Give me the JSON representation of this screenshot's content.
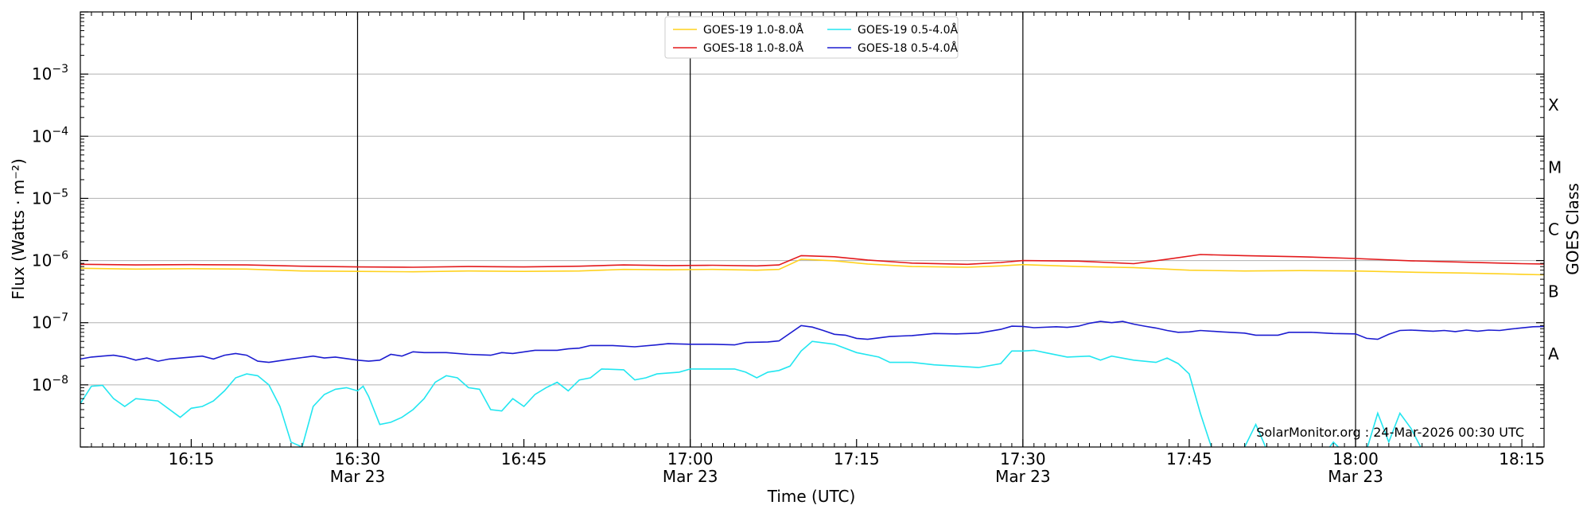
{
  "chart_data": {
    "type": "line",
    "xlabel": "Time (UTC)",
    "ylabel": "Flux (Watts · m⁻²)",
    "ylabel_right": "GOES Class",
    "yscale": "log",
    "ylim": [
      1e-09,
      0.01
    ],
    "xlim_minutes": [
      965,
      1097
    ],
    "x_ticks": [
      {
        "minute": 975,
        "label": "16:15",
        "sublabel": ""
      },
      {
        "minute": 990,
        "label": "16:30",
        "sublabel": "Mar 23"
      },
      {
        "minute": 1005,
        "label": "16:45",
        "sublabel": ""
      },
      {
        "minute": 1020,
        "label": "17:00",
        "sublabel": "Mar 23"
      },
      {
        "minute": 1035,
        "label": "17:15",
        "sublabel": ""
      },
      {
        "minute": 1050,
        "label": "17:30",
        "sublabel": "Mar 23"
      },
      {
        "minute": 1065,
        "label": "17:45",
        "sublabel": ""
      },
      {
        "minute": 1080,
        "label": "18:00",
        "sublabel": "Mar 23"
      },
      {
        "minute": 1095,
        "label": "18:15",
        "sublabel": ""
      }
    ],
    "y_ticks": [
      {
        "value": 1e-08,
        "label": "10",
        "exp": "−8"
      },
      {
        "value": 1e-07,
        "label": "10",
        "exp": "−7"
      },
      {
        "value": 1e-06,
        "label": "10",
        "exp": "−6"
      },
      {
        "value": 1e-05,
        "label": "10",
        "exp": "−5"
      },
      {
        "value": 0.0001,
        "label": "10",
        "exp": "−4"
      },
      {
        "value": 0.001,
        "label": "10",
        "exp": "−3"
      }
    ],
    "vertical_lines_minutes": [
      990,
      1020,
      1050,
      1080
    ],
    "goes_classes": [
      {
        "label": "A",
        "value": 3.16e-08
      },
      {
        "label": "B",
        "value": 3.16e-07
      },
      {
        "label": "C",
        "value": 3.16e-06
      },
      {
        "label": "M",
        "value": 3.16e-05
      },
      {
        "label": "X",
        "value": 0.000316
      }
    ],
    "grid": "horizontal",
    "legend_position": "top-center",
    "annotation": "SolarMonitor.org : 24-Mar-2026 00:30 UTC",
    "series": [
      {
        "name": "GOES-19 1.0-8.0Å",
        "color": "#ffd21f",
        "points": [
          [
            965,
            7.5e-07
          ],
          [
            970,
            7.3e-07
          ],
          [
            975,
            7.4e-07
          ],
          [
            980,
            7.3e-07
          ],
          [
            985,
            6.8e-07
          ],
          [
            990,
            6.7e-07
          ],
          [
            995,
            6.6e-07
          ],
          [
            1000,
            6.8e-07
          ],
          [
            1005,
            6.7e-07
          ],
          [
            1010,
            6.8e-07
          ],
          [
            1014,
            7.2e-07
          ],
          [
            1018,
            7.1e-07
          ],
          [
            1022,
            7.2e-07
          ],
          [
            1026,
            7e-07
          ],
          [
            1028,
            7.2e-07
          ],
          [
            1030,
            1.05e-06
          ],
          [
            1033,
            9.9e-07
          ],
          [
            1036,
            8.8e-07
          ],
          [
            1040,
            8e-07
          ],
          [
            1045,
            7.8e-07
          ],
          [
            1048,
            8.2e-07
          ],
          [
            1050,
            8.6e-07
          ],
          [
            1055,
            8e-07
          ],
          [
            1060,
            7.7e-07
          ],
          [
            1065,
            7e-07
          ],
          [
            1070,
            6.8e-07
          ],
          [
            1075,
            6.9e-07
          ],
          [
            1080,
            6.8e-07
          ],
          [
            1085,
            6.5e-07
          ],
          [
            1090,
            6.3e-07
          ],
          [
            1095,
            6e-07
          ],
          [
            1097,
            5.9e-07
          ]
        ]
      },
      {
        "name": "GOES-18 1.0-8.0Å",
        "color": "#e31a1c",
        "points": [
          [
            965,
            8.7e-07
          ],
          [
            970,
            8.5e-07
          ],
          [
            975,
            8.6e-07
          ],
          [
            980,
            8.5e-07
          ],
          [
            985,
            8.1e-07
          ],
          [
            990,
            7.9e-07
          ],
          [
            995,
            7.8e-07
          ],
          [
            1000,
            8e-07
          ],
          [
            1005,
            7.9e-07
          ],
          [
            1010,
            8.1e-07
          ],
          [
            1014,
            8.5e-07
          ],
          [
            1018,
            8.3e-07
          ],
          [
            1022,
            8.4e-07
          ],
          [
            1026,
            8.2e-07
          ],
          [
            1028,
            8.5e-07
          ],
          [
            1030,
            1.2e-06
          ],
          [
            1033,
            1.15e-06
          ],
          [
            1036,
            1.02e-06
          ],
          [
            1040,
            9.1e-07
          ],
          [
            1045,
            8.7e-07
          ],
          [
            1048,
            9.3e-07
          ],
          [
            1050,
            1e-06
          ],
          [
            1055,
            9.8e-07
          ],
          [
            1060,
            8.9e-07
          ],
          [
            1063,
            1.05e-06
          ],
          [
            1066,
            1.25e-06
          ],
          [
            1070,
            1.2e-06
          ],
          [
            1075,
            1.15e-06
          ],
          [
            1080,
            1.08e-06
          ],
          [
            1085,
            9.9e-07
          ],
          [
            1090,
            9.4e-07
          ],
          [
            1095,
            8.9e-07
          ],
          [
            1097,
            8.8e-07
          ]
        ]
      },
      {
        "name": "GOES-19 0.5-4.0Å",
        "color": "#22e6f0",
        "points": [
          [
            965,
            5e-09
          ],
          [
            966,
            9.5e-09
          ],
          [
            967,
            9.8e-09
          ],
          [
            968,
            6e-09
          ],
          [
            969,
            4.5e-09
          ],
          [
            970,
            6e-09
          ],
          [
            972,
            5.5e-09
          ],
          [
            974,
            3e-09
          ],
          [
            975,
            4.2e-09
          ],
          [
            976,
            4.5e-09
          ],
          [
            977,
            5.5e-09
          ],
          [
            978,
            8e-09
          ],
          [
            979,
            1.3e-08
          ],
          [
            980,
            1.5e-08
          ],
          [
            981,
            1.4e-08
          ],
          [
            982,
            1e-08
          ],
          [
            983,
            4.5e-09
          ],
          [
            984,
            1.2e-09
          ],
          [
            985,
            1e-09
          ],
          [
            986,
            4.5e-09
          ],
          [
            987,
            7e-09
          ],
          [
            988,
            8.5e-09
          ],
          [
            989,
            9e-09
          ],
          [
            990,
            8e-09
          ],
          [
            990.5,
            9.5e-09
          ],
          [
            991,
            6.5e-09
          ],
          [
            992,
            2.3e-09
          ],
          [
            993,
            2.5e-09
          ],
          [
            994,
            3e-09
          ],
          [
            995,
            4e-09
          ],
          [
            996,
            6e-09
          ],
          [
            997,
            1.1e-08
          ],
          [
            998,
            1.4e-08
          ],
          [
            999,
            1.3e-08
          ],
          [
            1000,
            9e-09
          ],
          [
            1001,
            8.5e-09
          ],
          [
            1002,
            4e-09
          ],
          [
            1003,
            3.8e-09
          ],
          [
            1004,
            6e-09
          ],
          [
            1005,
            4.5e-09
          ],
          [
            1006,
            7e-09
          ],
          [
            1007,
            9e-09
          ],
          [
            1008,
            1.1e-08
          ],
          [
            1009,
            8e-09
          ],
          [
            1010,
            1.2e-08
          ],
          [
            1011,
            1.3e-08
          ],
          [
            1012,
            1.8e-08
          ],
          [
            1014,
            1.75e-08
          ],
          [
            1015,
            1.2e-08
          ],
          [
            1016,
            1.3e-08
          ],
          [
            1017,
            1.5e-08
          ],
          [
            1019,
            1.6e-08
          ],
          [
            1020,
            1.8e-08
          ],
          [
            1022,
            1.8e-08
          ],
          [
            1024,
            1.8e-08
          ],
          [
            1025,
            1.6e-08
          ],
          [
            1026,
            1.3e-08
          ],
          [
            1027,
            1.6e-08
          ],
          [
            1028,
            1.7e-08
          ],
          [
            1029,
            2e-08
          ],
          [
            1030,
            3.5e-08
          ],
          [
            1031,
            5e-08
          ],
          [
            1033,
            4.5e-08
          ],
          [
            1035,
            3.3e-08
          ],
          [
            1037,
            2.8e-08
          ],
          [
            1038,
            2.3e-08
          ],
          [
            1040,
            2.3e-08
          ],
          [
            1042,
            2.1e-08
          ],
          [
            1044,
            2e-08
          ],
          [
            1046,
            1.9e-08
          ],
          [
            1048,
            2.2e-08
          ],
          [
            1049,
            3.5e-08
          ],
          [
            1050,
            3.5e-08
          ],
          [
            1051,
            3.6e-08
          ],
          [
            1052,
            3.3e-08
          ],
          [
            1054,
            2.8e-08
          ],
          [
            1056,
            2.9e-08
          ],
          [
            1057,
            2.5e-08
          ],
          [
            1058,
            2.9e-08
          ],
          [
            1060,
            2.5e-08
          ],
          [
            1062,
            2.3e-08
          ],
          [
            1063,
            2.7e-08
          ],
          [
            1064,
            2.2e-08
          ],
          [
            1065,
            1.5e-08
          ],
          [
            1066,
            3.5e-09
          ],
          [
            1067,
            1e-09
          ],
          [
            1068,
            6e-10
          ],
          [
            1069,
            6e-10
          ],
          [
            1070,
            1e-09
          ],
          [
            1071,
            2.3e-09
          ],
          [
            1072,
            9e-10
          ],
          [
            1073,
            6e-10
          ],
          [
            1075,
            5e-10
          ],
          [
            1077,
            7e-10
          ],
          [
            1078,
            1.2e-09
          ],
          [
            1079,
            8e-10
          ],
          [
            1080,
            6e-10
          ],
          [
            1081,
            9e-10
          ],
          [
            1082,
            3.5e-09
          ],
          [
            1083,
            1.2e-09
          ],
          [
            1084,
            3.5e-09
          ],
          [
            1085,
            2e-09
          ],
          [
            1086,
            9e-10
          ],
          [
            1088,
            6e-10
          ],
          [
            1092,
            5e-10
          ],
          [
            1097,
            5e-10
          ]
        ]
      },
      {
        "name": "GOES-18 0.5-4.0Å",
        "color": "#1c1cd0",
        "points": [
          [
            965,
            2.6e-08
          ],
          [
            966,
            2.8e-08
          ],
          [
            967,
            2.9e-08
          ],
          [
            968,
            3e-08
          ],
          [
            969,
            2.8e-08
          ],
          [
            970,
            2.5e-08
          ],
          [
            971,
            2.7e-08
          ],
          [
            972,
            2.4e-08
          ],
          [
            973,
            2.6e-08
          ],
          [
            975,
            2.8e-08
          ],
          [
            976,
            2.9e-08
          ],
          [
            977,
            2.6e-08
          ],
          [
            978,
            3e-08
          ],
          [
            979,
            3.2e-08
          ],
          [
            980,
            3e-08
          ],
          [
            981,
            2.4e-08
          ],
          [
            982,
            2.3e-08
          ],
          [
            984,
            2.6e-08
          ],
          [
            986,
            2.9e-08
          ],
          [
            987,
            2.7e-08
          ],
          [
            988,
            2.8e-08
          ],
          [
            990,
            2.5e-08
          ],
          [
            991,
            2.4e-08
          ],
          [
            992,
            2.5e-08
          ],
          [
            993,
            3.1e-08
          ],
          [
            994,
            2.9e-08
          ],
          [
            995,
            3.4e-08
          ],
          [
            996,
            3.3e-08
          ],
          [
            998,
            3.3e-08
          ],
          [
            1000,
            3.1e-08
          ],
          [
            1002,
            3e-08
          ],
          [
            1003,
            3.3e-08
          ],
          [
            1004,
            3.2e-08
          ],
          [
            1006,
            3.6e-08
          ],
          [
            1008,
            3.6e-08
          ],
          [
            1009,
            3.8e-08
          ],
          [
            1010,
            3.9e-08
          ],
          [
            1011,
            4.3e-08
          ],
          [
            1013,
            4.3e-08
          ],
          [
            1015,
            4.1e-08
          ],
          [
            1017,
            4.4e-08
          ],
          [
            1018,
            4.6e-08
          ],
          [
            1020,
            4.5e-08
          ],
          [
            1022,
            4.5e-08
          ],
          [
            1024,
            4.4e-08
          ],
          [
            1025,
            4.8e-08
          ],
          [
            1027,
            4.9e-08
          ],
          [
            1028,
            5.1e-08
          ],
          [
            1030,
            9e-08
          ],
          [
            1031,
            8.5e-08
          ],
          [
            1032,
            7.5e-08
          ],
          [
            1033,
            6.5e-08
          ],
          [
            1034,
            6.3e-08
          ],
          [
            1035,
            5.6e-08
          ],
          [
            1036,
            5.4e-08
          ],
          [
            1037,
            5.7e-08
          ],
          [
            1038,
            6e-08
          ],
          [
            1040,
            6.2e-08
          ],
          [
            1042,
            6.7e-08
          ],
          [
            1044,
            6.6e-08
          ],
          [
            1046,
            6.8e-08
          ],
          [
            1048,
            7.8e-08
          ],
          [
            1049,
            8.8e-08
          ],
          [
            1050,
            8.7e-08
          ],
          [
            1051,
            8.3e-08
          ],
          [
            1053,
            8.6e-08
          ],
          [
            1054,
            8.4e-08
          ],
          [
            1055,
            8.8e-08
          ],
          [
            1056,
            9.8e-08
          ],
          [
            1057,
            1.05e-07
          ],
          [
            1058,
            1e-07
          ],
          [
            1059,
            1.05e-07
          ],
          [
            1060,
            9.5e-08
          ],
          [
            1061,
            8.8e-08
          ],
          [
            1062,
            8.2e-08
          ],
          [
            1063,
            7.5e-08
          ],
          [
            1064,
            7e-08
          ],
          [
            1065,
            7.1e-08
          ],
          [
            1066,
            7.5e-08
          ],
          [
            1068,
            7.1e-08
          ],
          [
            1070,
            6.8e-08
          ],
          [
            1071,
            6.3e-08
          ],
          [
            1073,
            6.3e-08
          ],
          [
            1074,
            7e-08
          ],
          [
            1076,
            7e-08
          ],
          [
            1078,
            6.7e-08
          ],
          [
            1080,
            6.6e-08
          ],
          [
            1081,
            5.6e-08
          ],
          [
            1082,
            5.4e-08
          ],
          [
            1083,
            6.5e-08
          ],
          [
            1084,
            7.5e-08
          ],
          [
            1085,
            7.6e-08
          ],
          [
            1087,
            7.3e-08
          ],
          [
            1088,
            7.5e-08
          ],
          [
            1089,
            7.2e-08
          ],
          [
            1090,
            7.6e-08
          ],
          [
            1091,
            7.3e-08
          ],
          [
            1092,
            7.6e-08
          ],
          [
            1093,
            7.5e-08
          ],
          [
            1094,
            7.9e-08
          ],
          [
            1096,
            8.6e-08
          ],
          [
            1097,
            8.7e-08
          ]
        ]
      }
    ]
  }
}
